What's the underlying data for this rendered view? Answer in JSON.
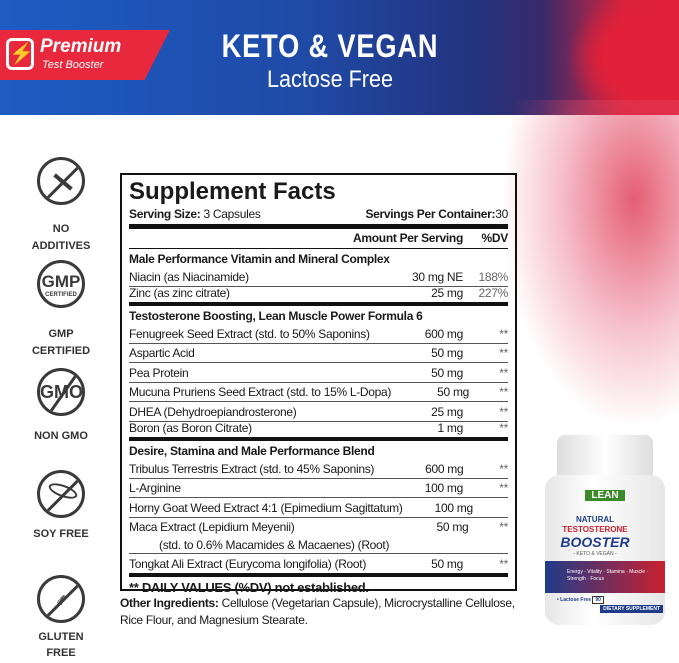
{
  "banner": {
    "badge_title": "Premium",
    "badge_subtitle": "Test Booster",
    "title": "KETO & VEGAN",
    "subtitle": "Lactose Free",
    "colors": {
      "blue": "#1d5cc4",
      "red": "#e32039"
    }
  },
  "badges": [
    {
      "icon": "no-additives-icon",
      "label1": "NO",
      "label2": "ADDITIVES"
    },
    {
      "icon": "gmp-certified-icon",
      "label1": "GMP",
      "label2": "CERTIFIED",
      "icon_text": "GMP",
      "icon_subtext": "CERTIFIED"
    },
    {
      "icon": "non-gmo-icon",
      "label1": "NON GMO",
      "icon_text": "GMO"
    },
    {
      "icon": "soy-free-icon",
      "label1": "SOY FREE"
    },
    {
      "icon": "gluten-free-icon",
      "label1": "GLUTEN",
      "label2": "FREE"
    }
  ],
  "facts": {
    "title": "Supplement Facts",
    "serving_size_label": "Serving Size:",
    "serving_size": "3 Capsules",
    "servings_label": "Servings Per Container:",
    "servings": "30",
    "col_amount": "Amount Per Serving",
    "col_dv": "%DV",
    "sections": [
      {
        "title": "Male Performance Vitamin and Mineral Complex",
        "rows": [
          {
            "name": "Niacin (as Niacinamide)",
            "amount": "30 mg NE",
            "dv": "188%"
          },
          {
            "name": "Zinc (as zinc citrate)",
            "amount": "25 mg",
            "dv": "227%"
          }
        ]
      },
      {
        "title": "Testosterone Boosting, Lean Muscle Power Formula 6",
        "rows": [
          {
            "name": "Fenugreek Seed Extract (std. to 50% Saponins)",
            "amount": "600 mg",
            "dv": "**"
          },
          {
            "name": "Aspartic Acid",
            "amount": "50 mg",
            "dv": "**"
          },
          {
            "name": "Pea Protein",
            "amount": "50 mg",
            "dv": "**"
          },
          {
            "name": "Mucuna Pruriens Seed Extract (std. to 15% L-Dopa)",
            "amount": "50 mg",
            "dv": "**"
          },
          {
            "name": "DHEA (Dehydroepiandrosterone)",
            "amount": "25 mg",
            "dv": "**"
          },
          {
            "name": "Boron (as Boron Citrate)",
            "amount": "1 mg",
            "dv": "**"
          }
        ]
      },
      {
        "title": "Desire, Stamina and Male Performance Blend",
        "rows": [
          {
            "name": "Tribulus Terrestris Extract (std. to 45% Saponins)",
            "amount": "600 mg",
            "dv": "**"
          },
          {
            "name": "L-Arginine",
            "amount": "100 mg",
            "dv": "**"
          },
          {
            "name": "Horny Goat Weed Extract 4:1 (Epimedium Sagittatum)",
            "amount": "100 mg",
            "dv": ""
          },
          {
            "name": "Maca Extract (Lepidium Meyenii)",
            "name2": "(std. to 0.6% Macamides & Macaenes) (Root)",
            "amount": "50 mg",
            "dv": "**"
          },
          {
            "name": "Tongkat Ali Extract (Eurycoma longifolia) (Root)",
            "amount": "50 mg",
            "dv": "**"
          }
        ]
      }
    ],
    "footnote": "** DAILY VALUES (%DV) not established."
  },
  "other": {
    "label": "Other Ingredients:",
    "text": " Cellulose (Vegetarian Capsule), Microcrystalline Cellulose, Rice Flour, and Magnesium Stearate."
  },
  "bottle": {
    "brand": "LEAN",
    "line1": "NATURAL",
    "line2": "TESTOSTERONE",
    "line3": "BOOSTER",
    "line4": "- KETO & VEGAN -",
    "benefits": "Energy · Vitality · Stamina · Muscle · Strength · Focus",
    "lactose": "• Lactose Free",
    "count": "90",
    "tag": "DIETARY SUPPLEMENT"
  }
}
